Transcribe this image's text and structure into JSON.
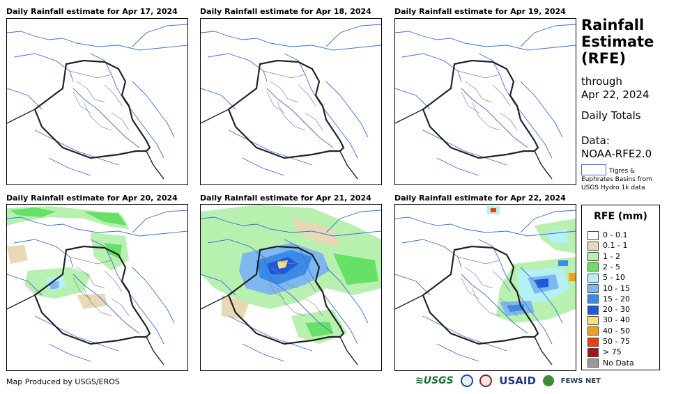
{
  "panels": [
    {
      "title": "Daily Rainfall estimate for Apr 17, 2024"
    },
    {
      "title": "Daily Rainfall estimate for Apr 18, 2024"
    },
    {
      "title": "Daily Rainfall estimate for Apr 19, 2024"
    },
    {
      "title": "Daily Rainfall estimate for Apr 20, 2024"
    },
    {
      "title": "Daily Rainfall estimate for Apr 21, 2024"
    },
    {
      "title": "Daily Rainfall estimate for Apr 22, 2024"
    }
  ],
  "sidebar": {
    "title_line1": "Rainfall",
    "title_line2": "Estimate",
    "title_line3": "(RFE)",
    "through": "through",
    "date": "Apr 22, 2024",
    "totals": "Daily Totals",
    "data_label": "Data:",
    "data_source": "NOAA-RFE2.0",
    "basins_line1": "Tigres &",
    "basins_line2": "Euphrates Basins from",
    "basins_line3": "USGS Hydro 1k data"
  },
  "legend": {
    "title": "RFE (mm)",
    "items": [
      {
        "label": "0 - 0.1",
        "color": "#ffffff"
      },
      {
        "label": "0.1 - 1",
        "color": "#e9d8b4"
      },
      {
        "label": "1 - 2",
        "color": "#b8f0b0"
      },
      {
        "label": "2 - 5",
        "color": "#66e066"
      },
      {
        "label": "5 - 10",
        "color": "#b4f0f4"
      },
      {
        "label": "10 - 15",
        "color": "#7fb8f0"
      },
      {
        "label": "15 - 20",
        "color": "#3a8ae8"
      },
      {
        "label": "20 - 30",
        "color": "#1e5ad8"
      },
      {
        "label": "30 - 40",
        "color": "#f4e080"
      },
      {
        "label": "40 - 50",
        "color": "#f0a020"
      },
      {
        "label": "50 - 75",
        "color": "#e84010"
      },
      {
        "label": "> 75",
        "color": "#a01818"
      },
      {
        "label": "No Data",
        "color": "#999999"
      }
    ]
  },
  "footer": {
    "credit": "Map Produced by USGS/EROS",
    "logo_usgs": "≋USGS",
    "logo_usaid": "USAID",
    "logo_fews": "FEWS NET"
  }
}
